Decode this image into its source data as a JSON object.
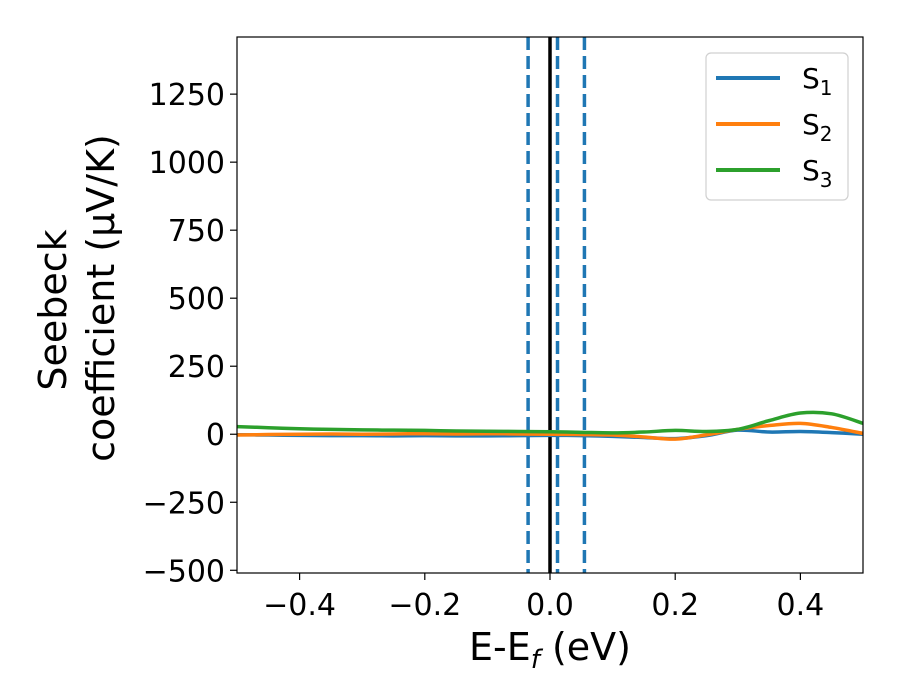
{
  "chart_data": {
    "type": "line",
    "xlabel": {
      "main": "E-E",
      "sub": "f",
      "unit": " (eV)"
    },
    "ylabel": {
      "line1": "Seebeck",
      "line2": "coefficient  (μV/K)"
    },
    "xlim": [
      -0.5,
      0.5
    ],
    "ylim": [
      -510,
      1460
    ],
    "xticks": [
      -0.4,
      -0.2,
      0.0,
      0.2,
      0.4
    ],
    "xtick_labels": [
      "−0.4",
      "−0.2",
      "0.0",
      "0.2",
      "0.4"
    ],
    "yticks": [
      -500,
      -250,
      0,
      250,
      500,
      750,
      1000,
      1250
    ],
    "ytick_labels": [
      "−500",
      "−250",
      "0",
      "250",
      "500",
      "750",
      "1000",
      "1250"
    ],
    "legend_position": "top-right",
    "vlines": [
      {
        "x": 0.0,
        "style": "solid",
        "color": "#000000"
      },
      {
        "x": -0.035,
        "style": "dashed",
        "color": "#1f77b4"
      },
      {
        "x": 0.012,
        "style": "dashed",
        "color": "#1f77b4"
      },
      {
        "x": 0.055,
        "style": "dashed",
        "color": "#1f77b4"
      }
    ],
    "series": [
      {
        "name": {
          "main": "S",
          "sub": "1"
        },
        "color": "#1f77b4",
        "x": [
          -0.5,
          -0.45,
          -0.4,
          -0.35,
          -0.3,
          -0.25,
          -0.2,
          -0.15,
          -0.1,
          -0.05,
          0.0,
          0.05,
          0.1,
          0.15,
          0.2,
          0.25,
          0.3,
          0.35,
          0.4,
          0.45,
          0.5
        ],
        "y": [
          -2,
          -3,
          -4,
          -5,
          -5,
          -6,
          -5,
          -6,
          -6,
          -5,
          -4,
          -5,
          -8,
          -12,
          -16,
          -5,
          15,
          8,
          10,
          6,
          0
        ]
      },
      {
        "name": {
          "main": "S",
          "sub": "2"
        },
        "color": "#ff7f0e",
        "x": [
          -0.5,
          -0.45,
          -0.4,
          -0.35,
          -0.3,
          -0.25,
          -0.2,
          -0.15,
          -0.1,
          -0.05,
          0.0,
          0.05,
          0.1,
          0.15,
          0.2,
          0.25,
          0.3,
          0.35,
          0.4,
          0.45,
          0.5
        ],
        "y": [
          -3,
          -1,
          0,
          1,
          0,
          1,
          2,
          1,
          2,
          1,
          0,
          -1,
          -3,
          -10,
          -18,
          -2,
          18,
          32,
          40,
          25,
          3
        ]
      },
      {
        "name": {
          "main": "S",
          "sub": "3"
        },
        "color": "#2ca02c",
        "x": [
          -0.5,
          -0.45,
          -0.4,
          -0.35,
          -0.3,
          -0.25,
          -0.2,
          -0.15,
          -0.1,
          -0.05,
          0.0,
          0.05,
          0.1,
          0.15,
          0.2,
          0.25,
          0.3,
          0.35,
          0.4,
          0.45,
          0.5
        ],
        "y": [
          28,
          24,
          20,
          18,
          16,
          15,
          14,
          12,
          11,
          10,
          9,
          7,
          5,
          8,
          14,
          10,
          18,
          50,
          78,
          75,
          40
        ]
      }
    ]
  }
}
